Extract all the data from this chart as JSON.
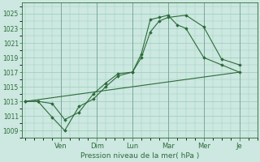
{
  "background_color": "#cce8e0",
  "grid_color": "#99ccbb",
  "line_color": "#2d6b3a",
  "marker_color": "#2d6b3a",
  "xlabel": "Pression niveau de la mer( hPa )",
  "ylim": [
    1008.0,
    1026.5
  ],
  "yticks": [
    1009,
    1011,
    1013,
    1015,
    1017,
    1019,
    1021,
    1023,
    1025
  ],
  "ytick_fontsize": 5.5,
  "xtick_fontsize": 6.0,
  "xlabel_fontsize": 6.5,
  "day_labels": [
    "Ven",
    "Dim",
    "Lun",
    "Mar",
    "Mer",
    "Je"
  ],
  "day_positions": [
    2.0,
    4.0,
    6.0,
    8.0,
    10.0,
    12.0
  ],
  "xlim": [
    -0.2,
    13.0
  ],
  "series1_x": [
    0,
    0.7,
    1.5,
    2.2,
    3.0,
    3.8,
    4.5,
    5.2,
    6.0,
    6.5,
    7.0,
    7.5,
    8.0,
    8.5,
    9.0,
    10.0,
    11.0,
    12.0
  ],
  "series1_y": [
    1013.0,
    1013.0,
    1012.7,
    1010.5,
    1011.5,
    1014.0,
    1015.5,
    1016.8,
    1017.0,
    1019.5,
    1024.2,
    1024.5,
    1024.8,
    1023.5,
    1023.0,
    1019.0,
    1018.0,
    1017.0
  ],
  "series2_x": [
    0,
    0.7,
    1.5,
    2.2,
    3.0,
    3.8,
    4.5,
    5.2,
    6.0,
    6.5,
    7.0,
    7.5,
    8.0,
    9.0,
    10.0,
    11.0,
    12.0
  ],
  "series2_y": [
    1013.0,
    1013.0,
    1010.8,
    1009.0,
    1012.3,
    1013.3,
    1015.0,
    1016.5,
    1017.0,
    1019.0,
    1022.5,
    1024.0,
    1024.5,
    1024.8,
    1023.2,
    1018.8,
    1018.0
  ],
  "series3_x": [
    0,
    12.0
  ],
  "series3_y": [
    1013.0,
    1017.0
  ],
  "figsize": [
    3.2,
    2.0
  ],
  "dpi": 100
}
